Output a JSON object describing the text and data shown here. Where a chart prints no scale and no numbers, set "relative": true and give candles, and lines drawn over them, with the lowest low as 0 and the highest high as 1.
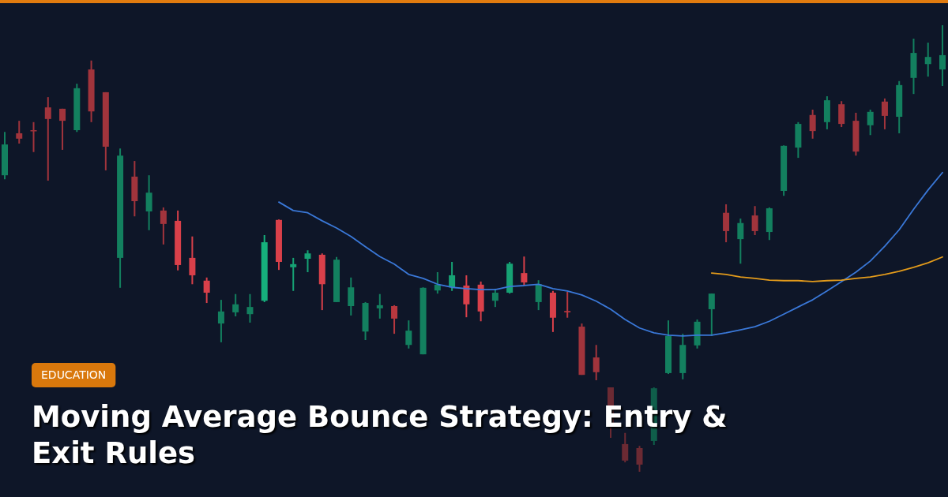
{
  "chart_data": {
    "type": "candlestick",
    "title": "Moving Average Bounce Strategy: Entry & Exit Rules",
    "annotations": [
      "EDUCATION"
    ],
    "relative": true,
    "categories": [
      null,
      null,
      null,
      null,
      null,
      null,
      null,
      null,
      null,
      null,
      null,
      null,
      null,
      null,
      null,
      null,
      null,
      null,
      null,
      null,
      null,
      null,
      null,
      null,
      null,
      null,
      null,
      null,
      null,
      null,
      null,
      null,
      null,
      null,
      null,
      null,
      null,
      null,
      null,
      null,
      null,
      null,
      null,
      null,
      null,
      null,
      null,
      null,
      null,
      null,
      null,
      null,
      null,
      null,
      null,
      null,
      null,
      null,
      null,
      null,
      null,
      null,
      null,
      null,
      null,
      null
    ],
    "ohlc": [
      [
        0.664,
        0.761,
        0.655,
        0.733
      ],
      [
        0.758,
        0.786,
        0.735,
        0.746
      ],
      [
        0.765,
        0.783,
        0.716,
        0.763
      ],
      [
        0.816,
        0.839,
        0.652,
        0.79
      ],
      [
        0.813,
        0.813,
        0.721,
        0.786
      ],
      [
        0.765,
        0.869,
        0.761,
        0.859
      ],
      [
        0.901,
        0.921,
        0.783,
        0.807
      ],
      [
        0.85,
        0.85,
        0.675,
        0.728
      ],
      [
        0.479,
        0.724,
        0.412,
        0.708
      ],
      [
        0.661,
        0.696,
        0.572,
        0.606
      ],
      [
        0.583,
        0.664,
        0.541,
        0.625
      ],
      [
        0.585,
        0.592,
        0.509,
        0.555
      ],
      [
        0.562,
        0.585,
        0.451,
        0.463
      ],
      [
        0.479,
        0.527,
        0.42,
        0.44
      ],
      [
        0.428,
        0.435,
        0.378,
        0.401
      ],
      [
        0.332,
        0.385,
        0.29,
        0.359
      ],
      [
        0.357,
        0.398,
        0.348,
        0.375
      ],
      [
        0.353,
        0.398,
        0.334,
        0.369
      ],
      [
        0.383,
        0.53,
        0.38,
        0.514
      ],
      [
        0.564,
        0.565,
        0.452,
        0.47
      ],
      [
        0.458,
        0.479,
        0.405,
        0.465
      ],
      [
        0.477,
        0.496,
        0.447,
        0.489
      ],
      [
        0.486,
        0.489,
        0.362,
        0.42
      ],
      [
        0.38,
        0.481,
        0.38,
        0.475
      ],
      [
        0.371,
        0.435,
        0.35,
        0.413
      ],
      [
        0.314,
        0.38,
        0.295,
        0.378
      ],
      [
        0.366,
        0.398,
        0.343,
        0.373
      ],
      [
        0.371,
        0.373,
        0.309,
        0.343
      ],
      [
        0.284,
        0.339,
        0.276,
        0.316
      ],
      [
        0.263,
        0.413,
        0.263,
        0.412
      ],
      [
        0.406,
        0.447,
        0.399,
        0.419
      ],
      [
        0.413,
        0.47,
        0.405,
        0.44
      ],
      [
        0.417,
        0.44,
        0.346,
        0.375
      ],
      [
        0.419,
        0.426,
        0.337,
        0.359
      ],
      [
        0.383,
        0.41,
        0.369,
        0.401
      ],
      [
        0.401,
        0.47,
        0.399,
        0.466
      ],
      [
        0.445,
        0.482,
        0.417,
        0.424
      ],
      [
        0.38,
        0.429,
        0.362,
        0.42
      ],
      [
        0.401,
        0.405,
        0.313,
        0.345
      ],
      [
        0.36,
        0.403,
        0.345,
        0.357
      ],
      [
        0.325,
        0.332,
        0.217,
        0.217
      ],
      [
        0.256,
        0.284,
        0.205,
        0.223
      ],
      [
        0.189,
        0.189,
        0.076,
        0.104
      ],
      [
        0.062,
        0.087,
        0.021,
        0.025
      ],
      [
        0.053,
        0.058,
        0,
        0.016
      ],
      [
        0.069,
        0.189,
        0.06,
        0.187
      ],
      [
        0.221,
        0.339,
        0.219,
        0.304
      ],
      [
        0.221,
        0.309,
        0.207,
        0.284
      ],
      [
        0.283,
        0.341,
        0.276,
        0.336
      ],
      [
        0.364,
        0.399,
        0.304,
        0.399
      ],
      [
        0.58,
        0.599,
        0.514,
        0.539
      ],
      [
        0.521,
        0.567,
        0.466,
        0.557
      ],
      [
        0.574,
        0.595,
        0.53,
        0.539
      ],
      [
        0.537,
        0.592,
        0.519,
        0.59
      ],
      [
        0.629,
        0.731,
        0.618,
        0.73
      ],
      [
        0.726,
        0.783,
        0.703,
        0.779
      ],
      [
        0.799,
        0.811,
        0.746,
        0.763
      ],
      [
        0.783,
        0.841,
        0.767,
        0.832
      ],
      [
        0.823,
        0.83,
        0.772,
        0.779
      ],
      [
        0.786,
        0.804,
        0.708,
        0.717
      ],
      [
        0.776,
        0.811,
        0.754,
        0.806
      ],
      [
        0.829,
        0.836,
        0.767,
        0.797
      ],
      [
        0.795,
        0.875,
        0.758,
        0.866
      ],
      [
        0.882,
        0.97,
        0.846,
        0.938
      ],
      [
        0.913,
        0.961,
        0.885,
        0.929
      ],
      [
        0.901,
        1,
        0.864,
        0.933
      ]
    ],
    "colors": [
      "#13805f",
      "#a1343c",
      "#a1343c",
      "#a1343c",
      "#a1343c",
      "#13805f",
      "#a1343c",
      "#a1343c",
      "#13805f",
      "#a1343c",
      "#13805f",
      "#a1343c",
      "#d9404a",
      "#d9404a",
      "#d9404a",
      "#13805f",
      "#13805f",
      "#13805f",
      "#16b07c",
      "#d9404a",
      "#16a274",
      "#16a274",
      "#d9404a",
      "#13805f",
      "#13805f",
      "#13805f",
      "#13805f",
      "#b8383f",
      "#13805f",
      "#13805f",
      "#13805f",
      "#16a274",
      "#d9404a",
      "#d9404a",
      "#13805f",
      "#16a274",
      "#d9404a",
      "#13805f",
      "#d9404a",
      "#b8383f",
      "#a1343c",
      "#a1343c",
      "#6b2a33",
      "#6b2a33",
      "#6b2a33",
      "#0f5e4a",
      "#13805f",
      "#13805f",
      "#13805f",
      "#13805f",
      "#a1343c",
      "#13805f",
      "#a1343c",
      "#13805f",
      "#13805f",
      "#13805f",
      "#a1343c",
      "#13805f",
      "#a1343c",
      "#a1343c",
      "#13805f",
      "#a1343c",
      "#13805f",
      "#13805f",
      "#13805f",
      "#13805f"
    ],
    "series": [
      {
        "type": "line",
        "color": "#3a78d8",
        "values": [
          null,
          null,
          null,
          null,
          null,
          null,
          null,
          null,
          null,
          null,
          null,
          null,
          null,
          null,
          null,
          null,
          null,
          null,
          null,
          0.604,
          0.585,
          0.58,
          0.562,
          0.546,
          0.527,
          0.504,
          0.482,
          0.465,
          0.442,
          0.433,
          0.42,
          0.413,
          0.41,
          0.408,
          0.408,
          0.415,
          0.417,
          0.42,
          0.41,
          0.405,
          0.396,
          0.382,
          0.364,
          0.341,
          0.322,
          0.311,
          0.306,
          0.304,
          0.306,
          0.306,
          0.311,
          0.318,
          0.325,
          0.337,
          0.353,
          0.369,
          0.385,
          0.405,
          0.426,
          0.447,
          0.472,
          0.505,
          0.542,
          0.588,
          0.631,
          0.67
        ]
      },
      {
        "type": "line",
        "color": "#e39b1b",
        "values": [
          null,
          null,
          null,
          null,
          null,
          null,
          null,
          null,
          null,
          null,
          null,
          null,
          null,
          null,
          null,
          null,
          null,
          null,
          null,
          null,
          null,
          null,
          null,
          null,
          null,
          null,
          null,
          null,
          null,
          null,
          null,
          null,
          null,
          null,
          null,
          null,
          null,
          null,
          null,
          null,
          null,
          null,
          null,
          null,
          null,
          null,
          null,
          null,
          null,
          0.445,
          0.442,
          0.436,
          0.433,
          0.429,
          0.428,
          0.428,
          0.426,
          0.428,
          0.429,
          0.433,
          0.436,
          0.442,
          0.449,
          0.458,
          0.468,
          0.481
        ]
      }
    ]
  }
}
